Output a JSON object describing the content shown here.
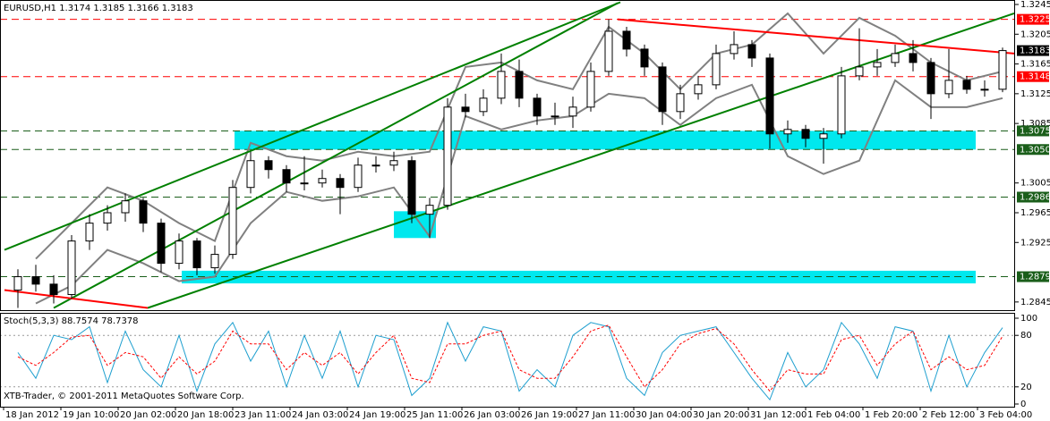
{
  "chart_data": [
    {
      "type": "candlestick",
      "title": "EURUSD,H1  1.3174 1.3185 1.3166 1.3183",
      "x": [
        5,
        10,
        15,
        20,
        25,
        30,
        35,
        40,
        45,
        50,
        55,
        60,
        65,
        70,
        75,
        80,
        85,
        90,
        95,
        100,
        105,
        110,
        115,
        120,
        125,
        130,
        135,
        140,
        145,
        150,
        155,
        160,
        165,
        170,
        175,
        180,
        185,
        190,
        195,
        200,
        205,
        210,
        215,
        220,
        225,
        230,
        235,
        240,
        245,
        250,
        255,
        260,
        265,
        270,
        275,
        280
      ],
      "open": [
        1.2861,
        1.2879,
        1.2869,
        1.2855,
        1.2927,
        1.2951,
        1.2965,
        1.2981,
        1.2951,
        1.2897,
        1.2927,
        1.2891,
        1.2909,
        1.2999,
        1.3035,
        1.3023,
        1.3005,
        1.3005,
        1.3011,
        1.2999,
        1.3029,
        1.3029,
        1.3035,
        1.2963,
        1.2975,
        1.3107,
        1.3101,
        1.3119,
        1.3155,
        1.3119,
        1.3095,
        1.3095,
        1.3107,
        1.3155,
        1.3209,
        1.3185,
        1.3161,
        1.3101,
        1.3125,
        1.3137,
        1.3179,
        1.3191,
        1.3173,
        1.3071,
        1.3077,
        1.3065,
        1.3071,
        1.3149,
        1.3161,
        1.3167,
        1.3179,
        1.3167,
        1.3125,
        1.3143,
        1.3131,
        1.3131
      ],
      "high": [
        1.2889,
        1.2895,
        1.2881,
        1.2935,
        1.2963,
        1.2975,
        1.2991,
        1.2985,
        1.2957,
        1.2937,
        1.2931,
        1.2921,
        1.3009,
        1.3047,
        1.3041,
        1.3029,
        1.3041,
        1.3023,
        1.3017,
        1.3039,
        1.3041,
        1.3047,
        1.3041,
        1.2985,
        1.3119,
        1.3125,
        1.3131,
        1.3179,
        1.3171,
        1.3125,
        1.3113,
        1.3121,
        1.3167,
        1.3225,
        1.3215,
        1.3191,
        1.3167,
        1.3137,
        1.3149,
        1.3191,
        1.3209,
        1.3197,
        1.3179,
        1.3089,
        1.3083,
        1.3079,
        1.3161,
        1.3213,
        1.3185,
        1.3191,
        1.3197,
        1.3173,
        1.3185,
        1.3149,
        1.3143,
        1.3187
      ],
      "low": [
        1.2837,
        1.2859,
        1.2843,
        1.2849,
        1.2915,
        1.2941,
        1.2953,
        1.2939,
        1.2885,
        1.2889,
        1.2881,
        1.2883,
        1.2903,
        1.2991,
        1.3011,
        1.2993,
        1.2995,
        1.2999,
        1.2963,
        1.2993,
        1.3019,
        1.3021,
        1.2951,
        1.2931,
        1.2969,
        1.3093,
        1.3095,
        1.3111,
        1.3107,
        1.3083,
        1.3083,
        1.3079,
        1.3101,
        1.3149,
        1.3175,
        1.3149,
        1.3083,
        1.3091,
        1.3117,
        1.3131,
        1.3171,
        1.3161,
        1.3051,
        1.3059,
        1.3053,
        1.3031,
        1.3065,
        1.3143,
        1.3149,
        1.3161,
        1.3155,
        1.3091,
        1.3119,
        1.3125,
        1.3121,
        1.3127
      ],
      "close": [
        1.2879,
        1.2869,
        1.2855,
        1.2927,
        1.2951,
        1.2965,
        1.2981,
        1.2951,
        1.2897,
        1.2927,
        1.2891,
        1.2909,
        1.2999,
        1.3035,
        1.3023,
        1.3005,
        1.3005,
        1.3011,
        1.2999,
        1.3029,
        1.3029,
        1.3035,
        1.2963,
        1.2975,
        1.3107,
        1.3101,
        1.3119,
        1.3155,
        1.3119,
        1.3095,
        1.3095,
        1.3107,
        1.3155,
        1.3209,
        1.3185,
        1.3161,
        1.3101,
        1.3125,
        1.3137,
        1.3179,
        1.3191,
        1.3173,
        1.3071,
        1.3077,
        1.3065,
        1.3071,
        1.3149,
        1.3161,
        1.3167,
        1.3179,
        1.3167,
        1.3125,
        1.3143,
        1.3131,
        1.3131,
        1.3183
      ],
      "bull_color": "#ffffff",
      "bear_color": "#000000",
      "bands": {
        "color": "#808080",
        "x": [
          10,
          20,
          30,
          40,
          50,
          60,
          70,
          80,
          90,
          100,
          110,
          120,
          130,
          140,
          150,
          160,
          170,
          180,
          190,
          200,
          210,
          220,
          230,
          240,
          250,
          260,
          270,
          280
        ],
        "upper": [
          1.2903,
          1.2951,
          1.2999,
          1.2981,
          1.2951,
          1.2927,
          1.3059,
          1.3041,
          1.3035,
          1.3047,
          1.3041,
          1.3047,
          1.3161,
          1.3167,
          1.3143,
          1.3131,
          1.3215,
          1.3179,
          1.3131,
          1.3179,
          1.3191,
          1.3233,
          1.3179,
          1.3227,
          1.3203,
          1.3167,
          1.3143,
          1.3155
        ],
        "lower": [
          1.2843,
          1.2867,
          1.2915,
          1.2897,
          1.2873,
          1.2879,
          1.2951,
          1.2993,
          1.2981,
          1.2987,
          1.2999,
          1.2933,
          1.3095,
          1.3077,
          1.3089,
          1.3095,
          1.3125,
          1.3119,
          1.3083,
          1.3119,
          1.3137,
          1.3041,
          1.3017,
          1.3035,
          1.3143,
          1.3107,
          1.3107,
          1.3119
        ]
      },
      "trend_lines": [
        {
          "color": "#008000",
          "x": [
            1.25,
            173.25
          ],
          "y": [
            1.2915,
            1.3248
          ]
        },
        {
          "color": "#008000",
          "x": [
            41.25,
            283.25
          ],
          "y": [
            1.2837,
            1.3233
          ]
        },
        {
          "color": "#008000",
          "x": [
            15,
            172.5
          ],
          "y": [
            1.2837,
            1.3247
          ]
        },
        {
          "color": "#ff0000",
          "x": [
            1.25,
            41.25
          ],
          "y": [
            1.2861,
            1.2837
          ]
        },
        {
          "color": "#ff0000",
          "x": [
            172.5,
            283.25
          ],
          "y": [
            1.3225,
            1.3179
          ]
        }
      ],
      "zones": [
        {
          "color": "#00e8ee",
          "x": [
            65.5,
            272.5
          ],
          "y": [
            1.305,
            1.3075
          ]
        },
        {
          "color": "#00e8ee",
          "x": [
            50.75,
            272.5
          ],
          "y": [
            1.287,
            1.2887
          ]
        },
        {
          "color": "#00e8ee",
          "x": [
            110,
            121.75
          ],
          "y": [
            1.2931,
            1.2967
          ]
        }
      ],
      "levels": [
        {
          "value": 1.3225,
          "color": "#ff0000"
        },
        {
          "value": 1.3148,
          "color": "#ff0000"
        },
        {
          "value": 1.3075,
          "color": "#1a5e1a"
        },
        {
          "value": 1.305,
          "label": "1.3050",
          "color": "#1a5e1a"
        },
        {
          "value": 1.2986,
          "color": "#1a5e1a"
        },
        {
          "value": 1.2879,
          "color": "#1a5e1a"
        }
      ],
      "price_label_color": "#000000",
      "xlim": [
        0,
        283.5
      ],
      "ylim": [
        1.2834,
        1.3251
      ],
      "yticks": [
        1.3245,
        1.3205,
        1.3165,
        1.3125,
        1.3085,
        1.3005,
        1.2965,
        1.2925,
        1.2845
      ],
      "xticks": [
        {
          "value": 1,
          "label": "18 Jan 2012"
        },
        {
          "value": 17,
          "label": "19 Jan 10:00"
        },
        {
          "value": 33,
          "label": "20 Jan 02:00"
        },
        {
          "value": 49,
          "label": "20 Jan 18:00"
        },
        {
          "value": 65,
          "label": "23 Jan 11:00"
        },
        {
          "value": 81,
          "label": "24 Jan 03:00"
        },
        {
          "value": 97,
          "label": "24 Jan 19:00"
        },
        {
          "value": 113,
          "label": "25 Jan 11:00"
        },
        {
          "value": 129,
          "label": "26 Jan 03:00"
        },
        {
          "value": 145,
          "label": "26 Jan 19:00"
        },
        {
          "value": 161,
          "label": "27 Jan 11:00"
        },
        {
          "value": 177,
          "label": "30 Jan 04:00"
        },
        {
          "value": 193,
          "label": "30 Jan 20:00"
        },
        {
          "value": 209,
          "label": "31 Jan 12:00"
        },
        {
          "value": 225,
          "label": "1 Feb 04:00"
        },
        {
          "value": 241,
          "label": "1 Feb 20:00"
        },
        {
          "value": 257,
          "label": "2 Feb 12:00"
        },
        {
          "value": 273,
          "label": "3 Feb 04:00"
        }
      ]
    },
    {
      "type": "line",
      "title": "Stoch(5,3,3) 88.7574 78.7378",
      "annotation": "XTB-Trader, © 2001-2011 MetaQuotes Software Corp.",
      "ylim": [
        0,
        100
      ],
      "yticks": [
        100,
        80,
        20,
        0
      ],
      "series": [
        {
          "color": "#1e9fcf",
          "style": "solid",
          "values": [
            60,
            30,
            80,
            75,
            90,
            25,
            85,
            40,
            20,
            80,
            15,
            70,
            95,
            50,
            85,
            20,
            80,
            30,
            85,
            20,
            80,
            75,
            10,
            30,
            95,
            50,
            90,
            85,
            15,
            40,
            20,
            80,
            95,
            90,
            30,
            10,
            60,
            80,
            85,
            90,
            60,
            30,
            5,
            60,
            20,
            40,
            95,
            70,
            30,
            90,
            85,
            15,
            80,
            20,
            60,
            89
          ]
        },
        {
          "color": "#ff0000",
          "style": "dashed",
          "values": [
            55,
            45,
            60,
            78,
            80,
            45,
            60,
            55,
            30,
            55,
            35,
            50,
            85,
            70,
            70,
            40,
            60,
            45,
            60,
            35,
            60,
            80,
            30,
            25,
            70,
            70,
            80,
            85,
            40,
            30,
            30,
            55,
            85,
            92,
            55,
            20,
            40,
            70,
            82,
            88,
            70,
            40,
            15,
            40,
            35,
            35,
            75,
            80,
            45,
            70,
            85,
            40,
            55,
            40,
            45,
            79
          ]
        }
      ]
    }
  ]
}
